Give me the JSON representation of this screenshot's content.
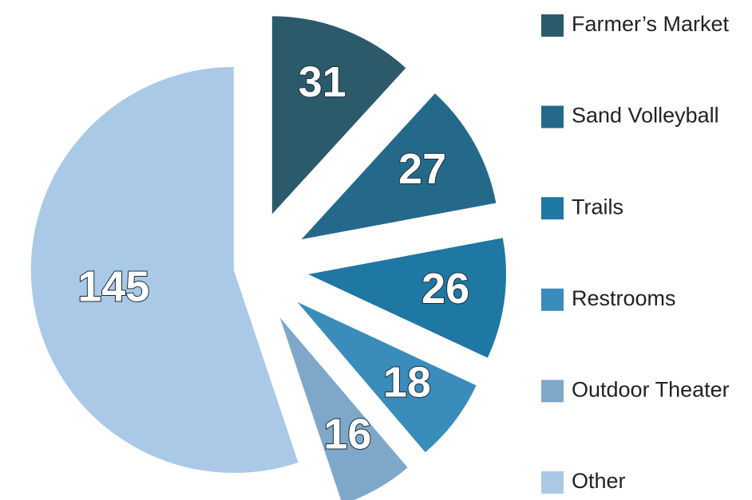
{
  "chart_data": {
    "type": "pie",
    "categories": [
      "Farmer’s Market",
      "Sand Volleyball",
      "Trails",
      "Restrooms",
      "Outdoor Theater",
      "Other"
    ],
    "values": [
      31,
      27,
      26,
      18,
      16,
      145
    ],
    "colors": [
      "#2b5a6b",
      "#25698a",
      "#1f77a3",
      "#3a8cba",
      "#7fa7c9",
      "#a9c9e7"
    ],
    "legend": "right"
  }
}
